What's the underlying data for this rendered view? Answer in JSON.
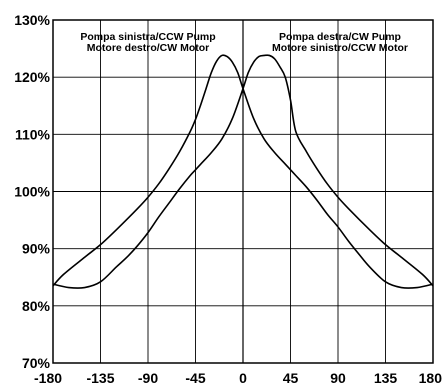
{
  "chart_data": {
    "type": "line",
    "title": "",
    "xlabel": "",
    "ylabel": "",
    "xlim": [
      -180,
      180
    ],
    "ylim": [
      70,
      130
    ],
    "grid": true,
    "x_ticks": [
      -180,
      -135,
      -90,
      -45,
      0,
      45,
      90,
      135,
      180
    ],
    "x_tick_labels": [
      "-180",
      "-135",
      "-90",
      "-45",
      "0",
      "45",
      "90",
      "135",
      "180"
    ],
    "y_ticks": [
      70,
      80,
      90,
      100,
      110,
      120,
      130
    ],
    "y_tick_labels": [
      "70%",
      "80%",
      "90%",
      "100%",
      "110%",
      "120%",
      "130%"
    ],
    "series": [
      {
        "x": [
          -180,
          -170,
          -150,
          -135,
          -120,
          -100,
          -90,
          -80,
          -70,
          -60,
          -50,
          -45,
          -40,
          -35,
          -30,
          -25,
          -20,
          -15,
          -10,
          -5,
          0,
          10,
          20,
          30,
          40,
          45,
          50,
          60,
          70,
          80,
          90,
          100,
          110,
          120,
          135,
          150,
          165,
          180
        ],
        "values": [
          83.5,
          85.5,
          88.5,
          90.7,
          93.3,
          97.0,
          99.0,
          101.3,
          104.0,
          107.0,
          110.5,
          112.6,
          115.2,
          118.0,
          120.8,
          122.8,
          123.8,
          123.6,
          122.6,
          120.8,
          118.0,
          112.8,
          109.2,
          106.8,
          104.8,
          103.8,
          102.8,
          100.8,
          98.5,
          96.0,
          93.8,
          91.3,
          89.0,
          86.8,
          84.2,
          83.2,
          83.2,
          83.8
        ]
      },
      {
        "x": [
          -180,
          -165,
          -150,
          -135,
          -120,
          -110,
          -100,
          -90,
          -80,
          -70,
          -60,
          -50,
          -45,
          -40,
          -30,
          -20,
          -10,
          0,
          5,
          10,
          15,
          20,
          25,
          30,
          35,
          40,
          45,
          50,
          60,
          70,
          80,
          90,
          100,
          120,
          135,
          150,
          170,
          180
        ],
        "values": [
          83.8,
          83.2,
          83.2,
          84.2,
          86.8,
          88.5,
          90.5,
          92.8,
          95.5,
          98.0,
          100.5,
          102.8,
          103.8,
          104.8,
          106.8,
          109.2,
          112.8,
          118.0,
          120.8,
          122.6,
          123.6,
          123.8,
          123.8,
          123.2,
          121.8,
          120.0,
          116.0,
          110.5,
          107.0,
          104.0,
          101.3,
          99.0,
          97.0,
          93.3,
          90.7,
          88.5,
          85.5,
          83.5
        ]
      }
    ],
    "annotations": [
      {
        "lines": [
          "Pompa sinistra/CCW Pump",
          "Motore destro/CW Motor"
        ]
      },
      {
        "lines": [
          "Pompa destra/CW Pump",
          "Motore sinistro/CCW Motor"
        ]
      }
    ],
    "colors": {
      "line": "#000000",
      "grid": "#000000",
      "background": "#ffffff"
    }
  }
}
